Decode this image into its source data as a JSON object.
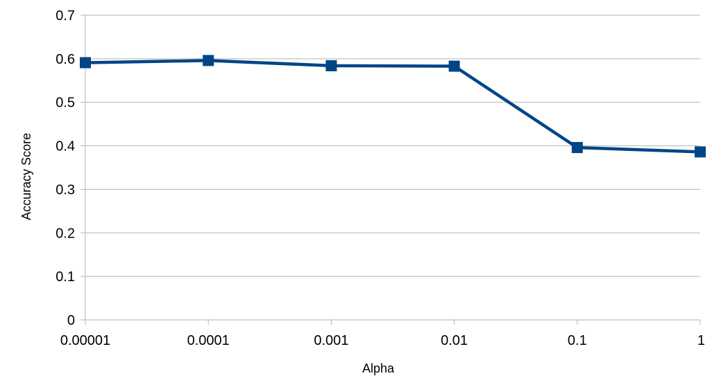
{
  "chart_data": {
    "type": "line",
    "title": "",
    "xlabel": "Alpha",
    "ylabel": "Accuracy Score",
    "categories": [
      "0.00001",
      "0.0001",
      "0.001",
      "0.01",
      "0.1",
      "1"
    ],
    "series": [
      {
        "values": [
          0.591,
          0.596,
          0.584,
          0.583,
          0.396,
          0.386
        ]
      }
    ],
    "ylim": [
      0,
      0.7
    ],
    "yticks": [
      "0",
      "0.1",
      "0.2",
      "0.3",
      "0.4",
      "0.5",
      "0.6",
      "0.7"
    ],
    "grid": true,
    "legend": "none",
    "colors": {
      "series": "#004586",
      "grid": "#b3b3b3",
      "axis": "#b3b3b3"
    }
  }
}
